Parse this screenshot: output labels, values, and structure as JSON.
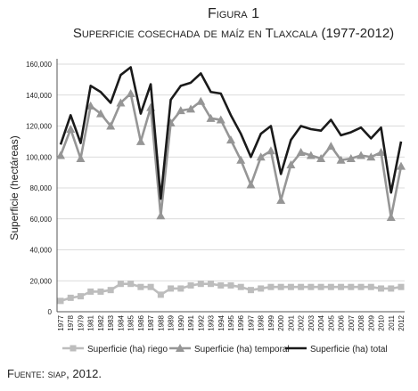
{
  "chart_data": {
    "type": "line",
    "title": "Figura 1",
    "subtitle": "Superficie cosechada de maíz en Tlaxcala (1977-2012)",
    "ylabel": "Superficie (hectáreas)",
    "source": "Fuente: siap, 2012.",
    "categories": [
      "1977",
      "1978",
      "1979",
      "1981",
      "1982",
      "1983",
      "1984",
      "1985",
      "1986",
      "1987",
      "1988",
      "1989",
      "1990",
      "1991",
      "1992",
      "1993",
      "1994",
      "1995",
      "1996",
      "1997",
      "1998",
      "1999",
      "2000",
      "2001",
      "2002",
      "2003",
      "2004",
      "2005",
      "2006",
      "2007",
      "2008",
      "2009",
      "2010",
      "2011",
      "2012"
    ],
    "series": [
      {
        "name": "Superficie (ha) riego",
        "color": "#bdbdbd",
        "marker": "square",
        "values": [
          7000,
          9000,
          10000,
          13000,
          13000,
          14000,
          18000,
          18000,
          16000,
          16000,
          11000,
          15000,
          15000,
          17000,
          18000,
          18000,
          17000,
          17000,
          16000,
          14000,
          15000,
          16000,
          16000,
          16000,
          16000,
          16000,
          16000,
          16000,
          16000,
          16000,
          16000,
          16000,
          15000,
          15000,
          16000
        ]
      },
      {
        "name": "Superficie (ha) temporal",
        "color": "#969696",
        "marker": "triangle",
        "values": [
          101000,
          118000,
          99000,
          133000,
          128000,
          120000,
          135000,
          141000,
          110000,
          132000,
          62000,
          122000,
          130000,
          131000,
          136000,
          125000,
          124000,
          111000,
          98000,
          82000,
          100000,
          104000,
          72000,
          95000,
          103000,
          101000,
          99000,
          107000,
          98000,
          99000,
          101000,
          100000,
          103000,
          61000,
          94000
        ]
      },
      {
        "name": "Superficie (ha) total",
        "color": "#1a1a1a",
        "marker": "none",
        "values": [
          108000,
          127000,
          109000,
          146000,
          142000,
          135000,
          153000,
          158000,
          128000,
          147000,
          73000,
          137000,
          146000,
          148000,
          154000,
          142000,
          141000,
          127000,
          115000,
          100000,
          115000,
          120000,
          89000,
          111000,
          120000,
          118000,
          117000,
          124000,
          114000,
          116000,
          119000,
          112000,
          119000,
          77000,
          110000
        ]
      }
    ],
    "ylim": [
      0,
      160000
    ],
    "yticks": [
      0,
      {
        "value": 20000,
        "label": "20,000"
      },
      {
        "value": 40000,
        "label": "40,000"
      },
      {
        "value": 60000,
        "label": "60,000"
      },
      {
        "value": 80000,
        "label": "80,000"
      },
      {
        "value": 100000,
        "label": "100,000"
      },
      {
        "value": 120000,
        "label": "120,000"
      },
      {
        "value": 140000,
        "label": "140,000"
      },
      {
        "value": 160000,
        "label": "160,000"
      }
    ],
    "grid": true
  }
}
